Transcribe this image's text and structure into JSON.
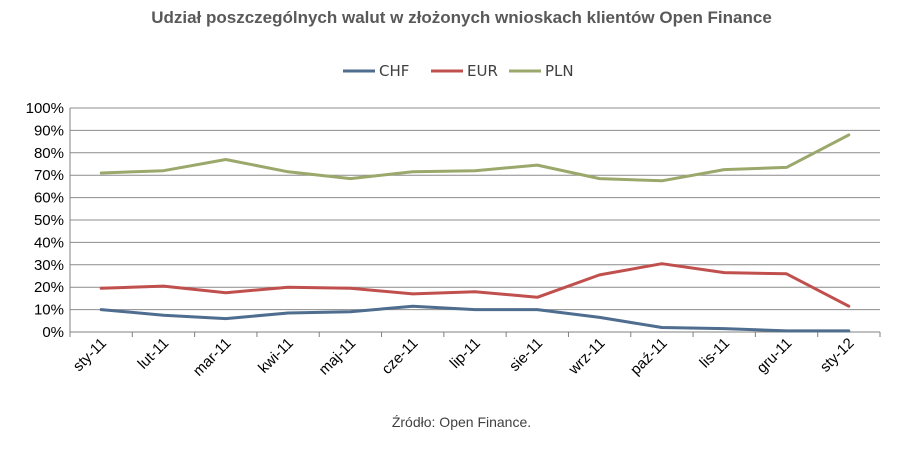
{
  "chart_data": {
    "type": "line",
    "title": "Udział poszczególnych walut w złożonych wnioskach klientów Open Finance",
    "source_note": "Źródło: Open Finance.",
    "categories": [
      "sty-11",
      "lut-11",
      "mar-11",
      "kwi-11",
      "maj-11",
      "cze-11",
      "lip-11",
      "sie-11",
      "wrz-11",
      "paź-11",
      "lis-11",
      "gru-11",
      "sty-12"
    ],
    "ylim": [
      0,
      100
    ],
    "yticks": [
      "0%",
      "10%",
      "20%",
      "30%",
      "40%",
      "50%",
      "60%",
      "70%",
      "80%",
      "90%",
      "100%"
    ],
    "grid": true,
    "legend_position": "top",
    "series": [
      {
        "name": "CHF",
        "color": "#4F6D8F",
        "values": [
          10,
          7.5,
          6,
          8.5,
          9,
          11.5,
          10,
          10,
          6.5,
          2,
          1.5,
          0.5,
          0.5
        ]
      },
      {
        "name": "EUR",
        "color": "#C0504D",
        "values": [
          19.5,
          20.5,
          17.5,
          20,
          19.5,
          17,
          18,
          15.5,
          25.5,
          30.5,
          26.5,
          26,
          11.5
        ]
      },
      {
        "name": "PLN",
        "color": "#9BA86B",
        "values": [
          71,
          72,
          77,
          71.5,
          68.5,
          71.5,
          72,
          74.5,
          68.5,
          67.5,
          72.5,
          73.5,
          88
        ]
      }
    ]
  }
}
